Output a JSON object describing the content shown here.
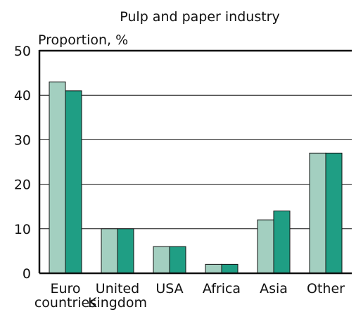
{
  "chart_data": {
    "type": "bar",
    "title": "Pulp and paper industry",
    "ylabel": "Proportion, %",
    "xlabel": "",
    "ylim": [
      0,
      50
    ],
    "yticks": [
      0,
      10,
      20,
      30,
      40,
      50
    ],
    "grid": true,
    "legend": "none",
    "categories": [
      [
        "Euro",
        "countries"
      ],
      [
        "United",
        "Kingdom"
      ],
      [
        "USA"
      ],
      [
        "Africa"
      ],
      [
        "Asia"
      ],
      [
        "Other"
      ]
    ],
    "series": [
      {
        "values": [
          43,
          10,
          6,
          2,
          12,
          27
        ],
        "color": "#a3cfc0"
      },
      {
        "values": [
          41,
          10,
          6,
          2,
          14,
          27
        ],
        "color": "#1f9e84"
      }
    ]
  }
}
